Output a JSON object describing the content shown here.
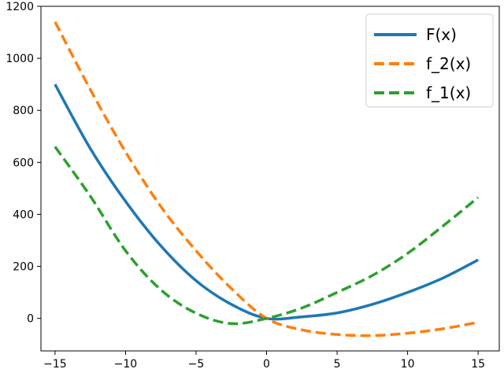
{
  "chart_data": {
    "type": "line",
    "title": "",
    "xlabel": "",
    "ylabel": "",
    "xlim": [
      -16,
      16.5
    ],
    "ylim": [
      -125,
      1200
    ],
    "x_ticks": [
      -15,
      -10,
      -5,
      0,
      5,
      10,
      15
    ],
    "x_tick_labels": [
      "−15",
      "−10",
      "−5",
      "0",
      "5",
      "10",
      "15"
    ],
    "y_ticks": [
      0,
      200,
      400,
      600,
      800,
      1000,
      1200
    ],
    "y_tick_labels": [
      "0",
      "200",
      "400",
      "600",
      "800",
      "1000",
      "1200"
    ],
    "grid": false,
    "legend": "top-right",
    "series": [
      {
        "name": "F(x)",
        "color": "#1f77b4",
        "style": "solid",
        "x": [
          -15,
          -12.5,
          -10,
          -7.5,
          -5,
          -2.5,
          0,
          2.5,
          5,
          7.5,
          10,
          12.5,
          15
        ],
        "y": [
          900,
          653,
          450,
          279,
          145,
          54,
          0,
          6,
          21,
          54,
          100,
          155,
          225
        ]
      },
      {
        "name": "f_2(x)",
        "color": "#ff7f0e",
        "style": "dashed",
        "x": [
          -15,
          -12.5,
          -10,
          -7.5,
          -5,
          -2.5,
          0,
          2.5,
          5,
          7.5,
          10,
          12.5,
          15
        ],
        "y": [
          1140,
          880,
          640,
          430,
          260,
          115,
          0,
          -44,
          -62,
          -66,
          -57,
          -40,
          -15
        ]
      },
      {
        "name": "f_1(x)",
        "color": "#2ca02c",
        "style": "dashed",
        "x": [
          -15,
          -12.5,
          -10,
          -7.5,
          -5,
          -2.5,
          0,
          2.5,
          5,
          7.5,
          10,
          12.5,
          15
        ],
        "y": [
          660,
          470,
          260,
          110,
          20,
          -20,
          0,
          40,
          100,
          165,
          250,
          355,
          465
        ]
      }
    ]
  }
}
